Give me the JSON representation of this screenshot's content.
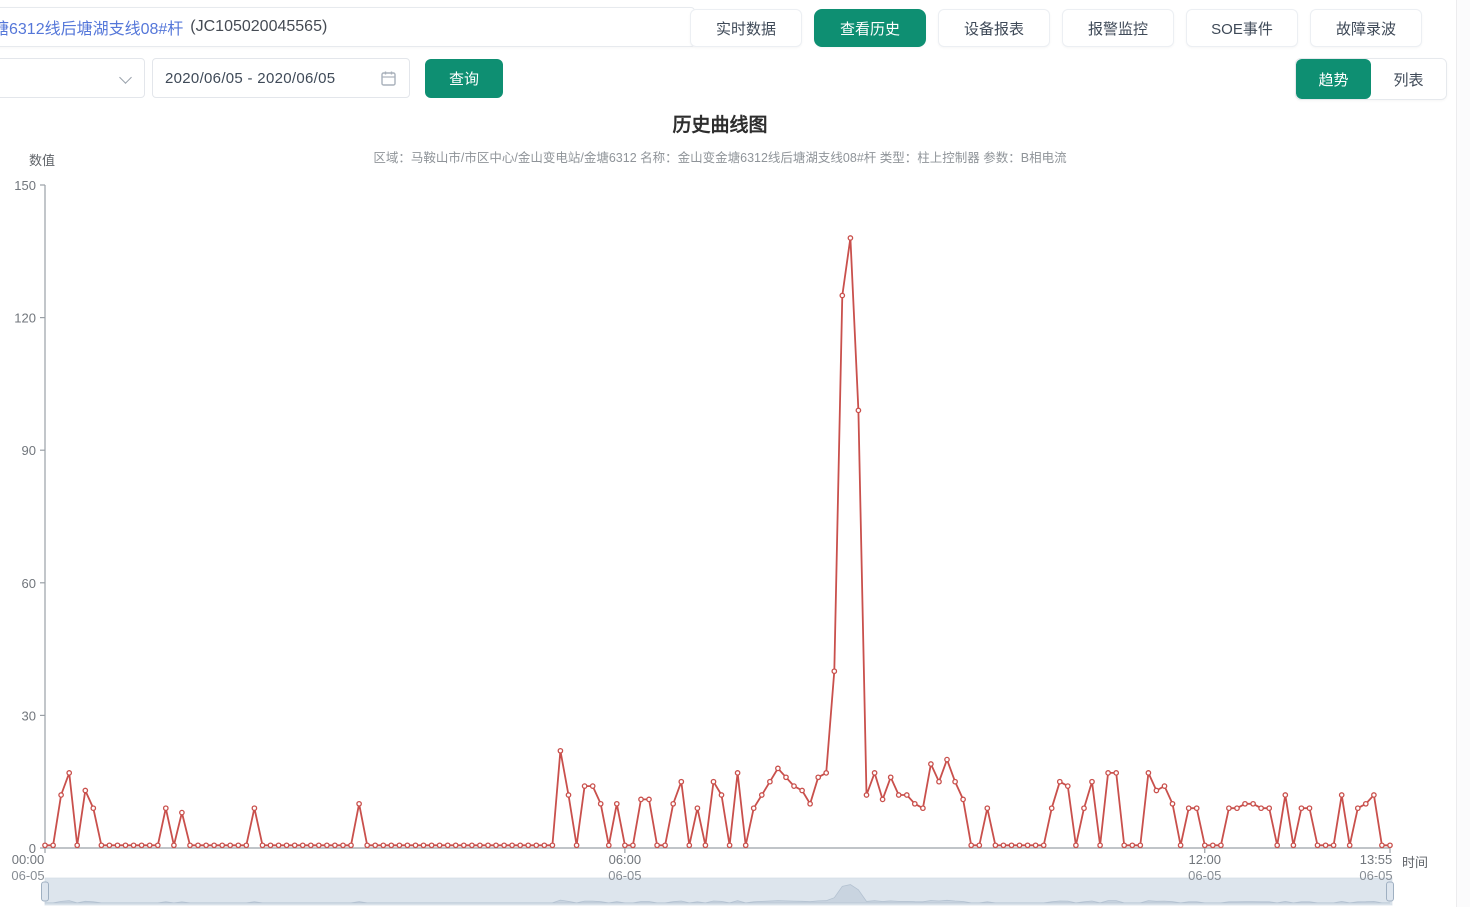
{
  "header": {
    "device_title": "塘6312线后塘湖支线08#杆",
    "device_code": "(JC105020045565)",
    "tabs": [
      {
        "label": "实时数据",
        "active": false
      },
      {
        "label": "查看历史",
        "active": true
      },
      {
        "label": "设备报表",
        "active": false
      },
      {
        "label": "报警监控",
        "active": false
      },
      {
        "label": "SOE事件",
        "active": false
      },
      {
        "label": "故障录波",
        "active": false
      }
    ]
  },
  "toolbar": {
    "select_value": "",
    "date_range": "2020/06/05 - 2020/06/05",
    "query_label": "查询",
    "trend_label": "趋势",
    "list_label": "列表"
  },
  "chart": {
    "title": "历史曲线图",
    "subtitle": "区域：马鞍山市/市区中心/金山变电站/金塘6312  名称：金山变金塘6312线后塘湖支线08#杆  类型：柱上控制器  参数：B相电流"
  },
  "chart_data": {
    "type": "line",
    "title": "历史曲线图",
    "xlabel": "时间",
    "ylabel": "数值",
    "ylim": [
      0,
      150
    ],
    "yticks": [
      0,
      30,
      60,
      90,
      120,
      150
    ],
    "grid": "off",
    "legend": "none",
    "line_color": "#c9504c",
    "marker": "empty-circle",
    "x_start_minutes": 0,
    "x_end_minutes": 835,
    "sample_interval_minutes": 5,
    "x_date": "06-05",
    "xticks": [
      {
        "minutes": 0,
        "label": "00:00",
        "sub": "06-05"
      },
      {
        "minutes": 360,
        "label": "06:00",
        "sub": "06-05"
      },
      {
        "minutes": 720,
        "label": "12:00",
        "sub": "06-05"
      },
      {
        "minutes": 835,
        "label": "13:55",
        "sub": "06-05"
      }
    ],
    "baseline_value": 0.6,
    "spikes": {
      "00:10": 12,
      "00:15": 17,
      "00:25": 13,
      "00:30": 9,
      "01:15": 9,
      "01:25": 8,
      "02:10": 9,
      "03:15": 10,
      "05:20": 22,
      "05:25": 12,
      "05:35": 14,
      "05:40": 14,
      "05:45": 10,
      "05:55": 10,
      "06:10": 11,
      "06:15": 11,
      "06:30": 10,
      "06:35": 15,
      "06:45": 9,
      "06:55": 15,
      "07:00": 12,
      "07:10": 17,
      "07:20": 9,
      "07:25": 12,
      "07:30": 15,
      "07:35": 18,
      "07:40": 16,
      "07:45": 14,
      "07:50": 13,
      "07:55": 10,
      "08:00": 16,
      "08:05": 17,
      "08:10": 40,
      "08:15": 125,
      "08:20": 138,
      "08:25": 99,
      "08:30": 12,
      "08:35": 17,
      "08:40": 11,
      "08:45": 16,
      "08:50": 12,
      "08:55": 12,
      "09:00": 10,
      "09:05": 9,
      "09:10": 19,
      "09:15": 15,
      "09:20": 20,
      "09:25": 15,
      "09:30": 11,
      "09:45": 9,
      "10:25": 9,
      "10:30": 15,
      "10:35": 14,
      "10:45": 9,
      "10:50": 15,
      "11:00": 17,
      "11:05": 17,
      "11:25": 17,
      "11:30": 13,
      "11:35": 14,
      "11:40": 10,
      "11:50": 9,
      "11:55": 9,
      "12:15": 9,
      "12:20": 9,
      "12:25": 10,
      "12:30": 10,
      "12:35": 9,
      "12:40": 9,
      "12:50": 12,
      "13:00": 9,
      "13:05": 9,
      "13:25": 12,
      "13:35": 9,
      "13:40": 10,
      "13:45": 12
    }
  },
  "colors": {
    "accent_green": "#0e8f72",
    "link_blue": "#5577d9",
    "line_red": "#c9504c",
    "axis_gray": "#9aa0a6"
  }
}
